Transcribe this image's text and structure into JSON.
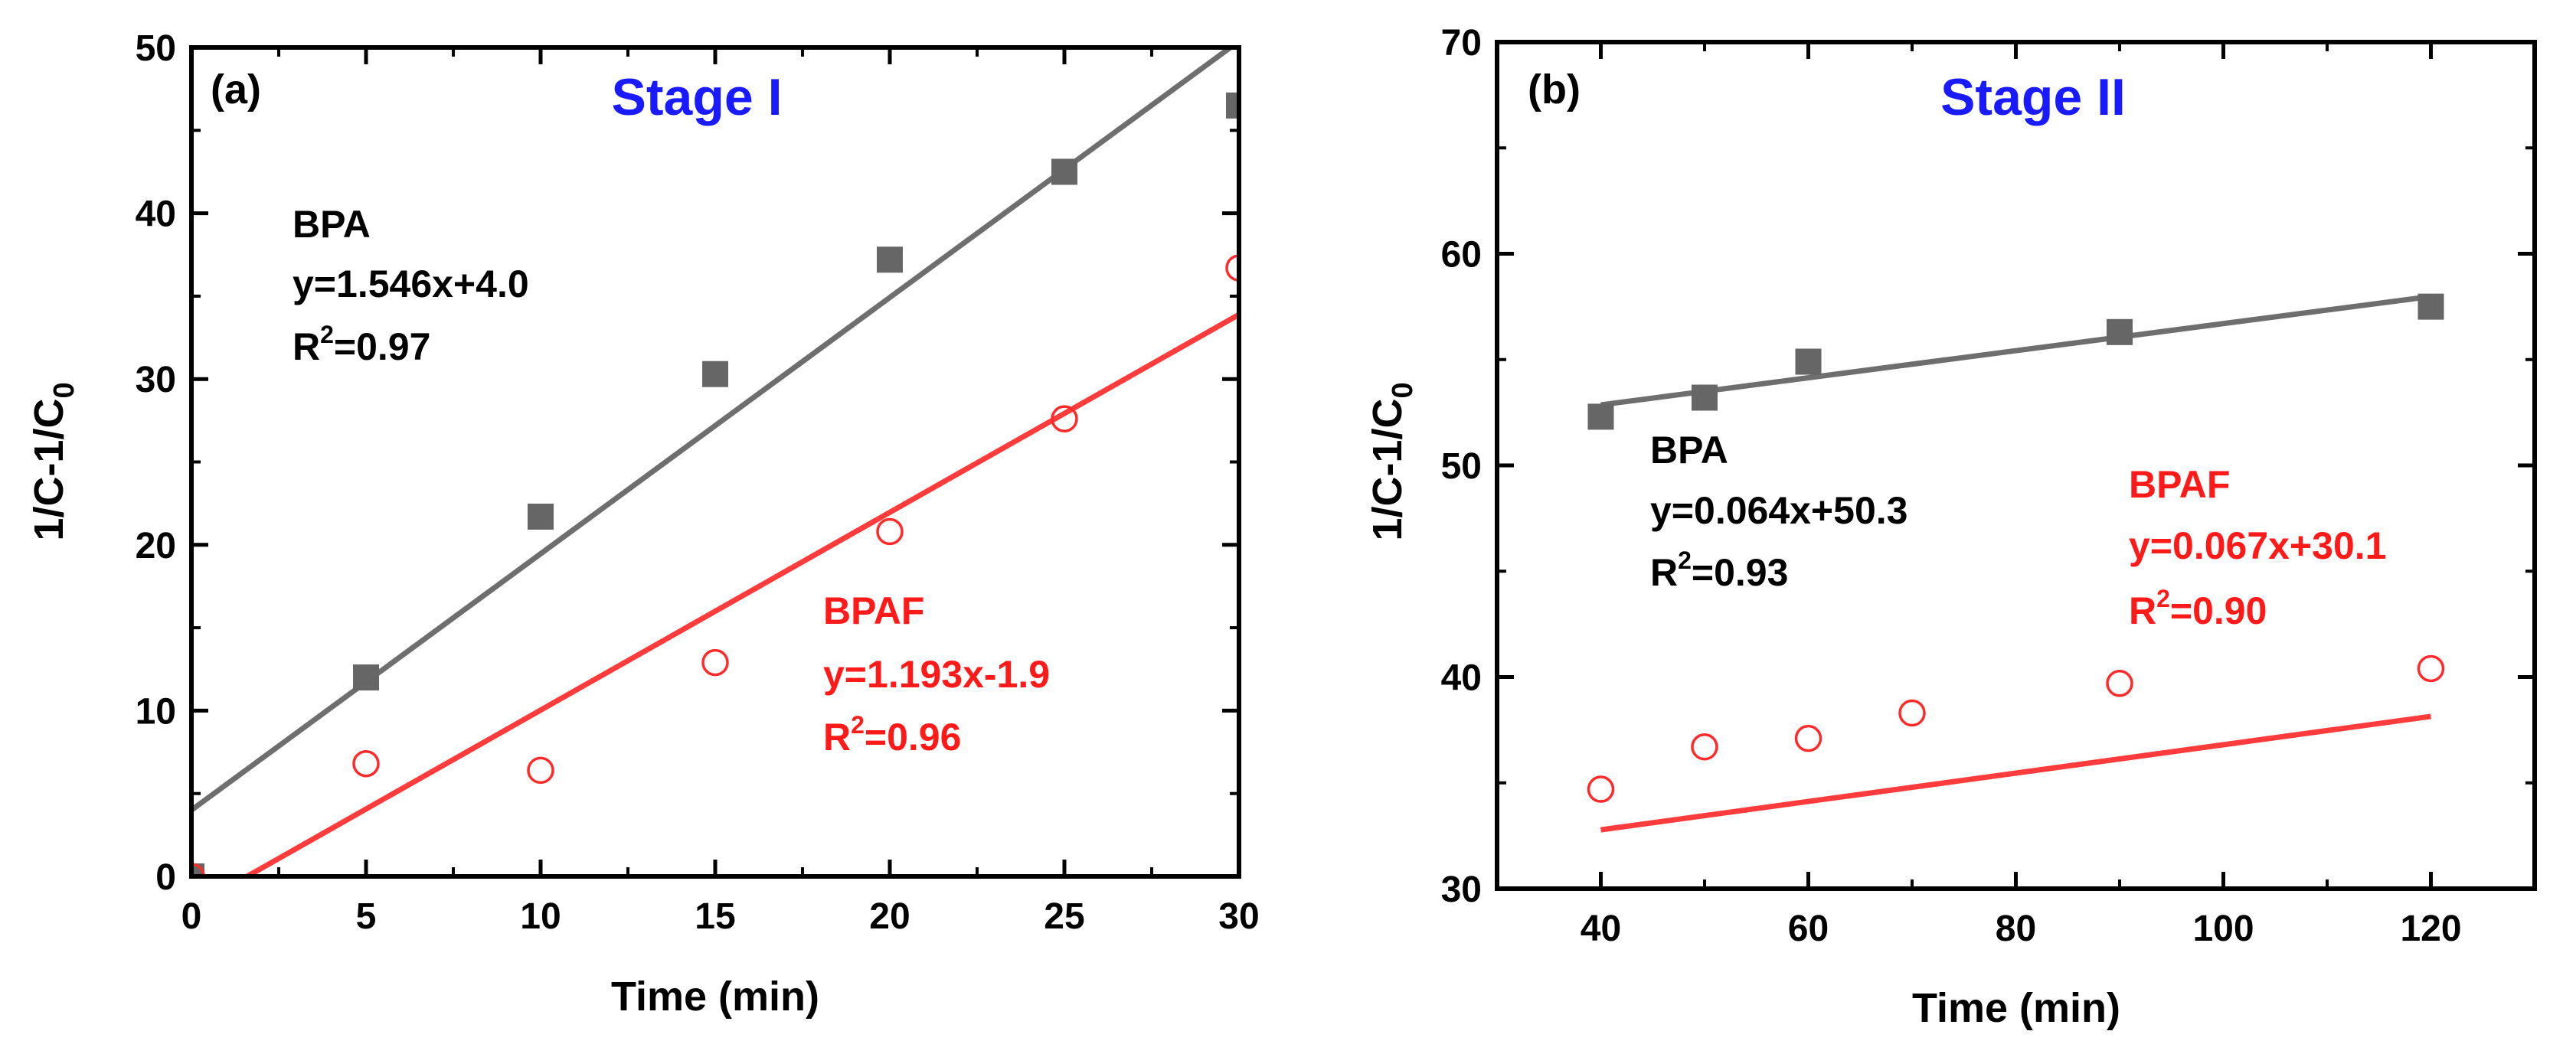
{
  "chart_data": [
    {
      "type": "scatter",
      "panel_label": "(a)",
      "title": "Stage I",
      "title_color": "#1a1aff",
      "xlabel": "Time (min)",
      "ylabel": "1/C-1/C",
      "ylabel_sub": "0",
      "xlim": [
        0,
        30
      ],
      "ylim": [
        0,
        50
      ],
      "xticks": [
        0,
        5,
        10,
        15,
        20,
        25,
        30
      ],
      "yticks": [
        0,
        10,
        20,
        30,
        40,
        50
      ],
      "series": [
        {
          "name": "BPA",
          "marker": "filled-square",
          "color": "#666666",
          "fit_color": "#6e6e6e",
          "x": [
            0,
            5,
            10,
            15,
            20,
            25,
            30
          ],
          "y": [
            0,
            12.0,
            21.7,
            30.3,
            37.2,
            42.5,
            46.5
          ],
          "fit": {
            "slope": 1.546,
            "intercept": 4.0
          },
          "annotation": {
            "name": "BPA",
            "equation": "y=1.546x+4.0",
            "r2_prefix": "R",
            "r2_exp": "2",
            "r2_value": "=0.97",
            "color": "#000000"
          }
        },
        {
          "name": "BPAF",
          "marker": "open-circle",
          "color": "#ff2a2a",
          "fit_color": "#ff3b3b",
          "x": [
            0,
            5,
            10,
            15,
            20,
            25,
            30
          ],
          "y": [
            0,
            6.8,
            6.4,
            12.9,
            20.8,
            27.6,
            36.7
          ],
          "fit": {
            "slope": 1.193,
            "intercept": -1.9
          },
          "annotation": {
            "name": "BPAF",
            "equation": "y=1.193x-1.9",
            "r2_prefix": "R",
            "r2_exp": "2",
            "r2_value": "=0.96",
            "color": "#ff1a1a"
          }
        }
      ]
    },
    {
      "type": "scatter",
      "panel_label": "(b)",
      "title": "Stage II",
      "title_color": "#1a1aff",
      "xlabel": "Time (min)",
      "ylabel": "1/C-1/C",
      "ylabel_sub": "0",
      "xlim": [
        30,
        130
      ],
      "ylim": [
        30,
        70
      ],
      "xticks": [
        40,
        60,
        80,
        100,
        120
      ],
      "yticks": [
        30,
        40,
        50,
        60,
        70
      ],
      "series": [
        {
          "name": "BPA",
          "marker": "filled-square",
          "color": "#666666",
          "fit_color": "#6e6e6e",
          "x": [
            40,
            50,
            60,
            90,
            120
          ],
          "y": [
            52.3,
            53.2,
            54.9,
            56.3,
            57.5
          ],
          "fit": {
            "slope": 0.064,
            "intercept": 50.3,
            "range": [
              40,
              120
            ]
          },
          "annotation": {
            "name": "BPA",
            "equation": "y=0.064x+50.3",
            "r2_prefix": "R",
            "r2_exp": "2",
            "r2_value": "=0.93",
            "color": "#000000"
          }
        },
        {
          "name": "BPAF",
          "marker": "open-circle",
          "color": "#ff2a2a",
          "fit_color": "#ff3b3b",
          "x": [
            40,
            50,
            60,
            70,
            90,
            120
          ],
          "y": [
            34.7,
            36.7,
            37.1,
            38.3,
            39.7,
            40.4
          ],
          "fit": {
            "slope": 0.067,
            "intercept": 30.1,
            "range": [
              40,
              120
            ]
          },
          "annotation": {
            "name": "BPAF",
            "equation": "y=0.067x+30.1",
            "r2_prefix": "R",
            "r2_exp": "2",
            "r2_value": "=0.90",
            "color": "#ff1a1a"
          }
        }
      ]
    }
  ]
}
